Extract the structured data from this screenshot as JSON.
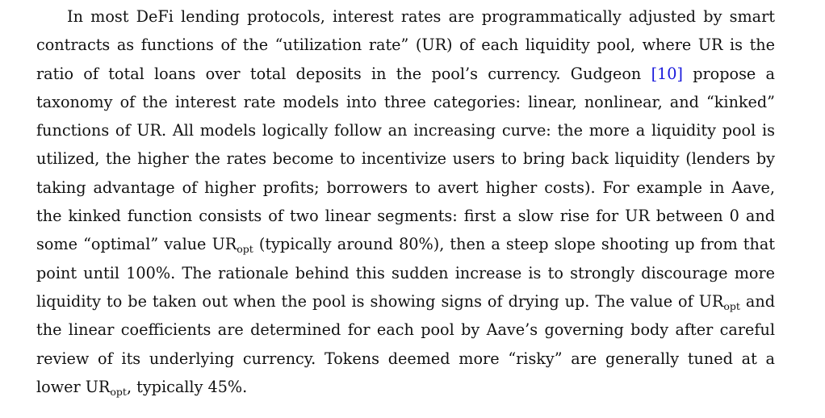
{
  "paragraph": {
    "seg1": "In most DeFi lending protocols, interest rates are programmatically adjusted by smart contracts as functions of the “utilization rate” (UR) of each liquidity pool, where UR is the ratio of total loans over total deposits in the pool’s currency. Gudgeon ",
    "citation": "[10]",
    "seg2": " propose a taxonomy of the interest rate models into three categories: linear, nonlinear, and “kinked” functions of UR. All models logically follow an increasing curve: the more a liquidity pool is utilized, the higher the rates become to incentivize users to bring back liquidity (lenders by taking advantage of higher profits; borrowers to avert higher costs). For example in Aave, the kinked function consists of two linear segments: first a slow rise for UR between 0 and some “optimal” value ",
    "ur1": "UR",
    "opt1": "opt",
    "seg3": " (typically around 80%), then a steep slope shooting up from that point until 100%. The rationale behind this sudden increase is to strongly discourage more liquidity to be taken out when the pool is showing signs of drying up. The value of ",
    "ur2": "UR",
    "opt2": "opt",
    "seg4": " and the linear coefficients are determined for each pool by Aave’s governing body after careful review of its underlying currency. Tokens deemed more “risky” are generally tuned at a lower ",
    "ur3": "UR",
    "opt3": "opt",
    "seg5": ", typically 45%."
  },
  "colors": {
    "text": "#111111",
    "citation_link": "#1a1adc"
  }
}
